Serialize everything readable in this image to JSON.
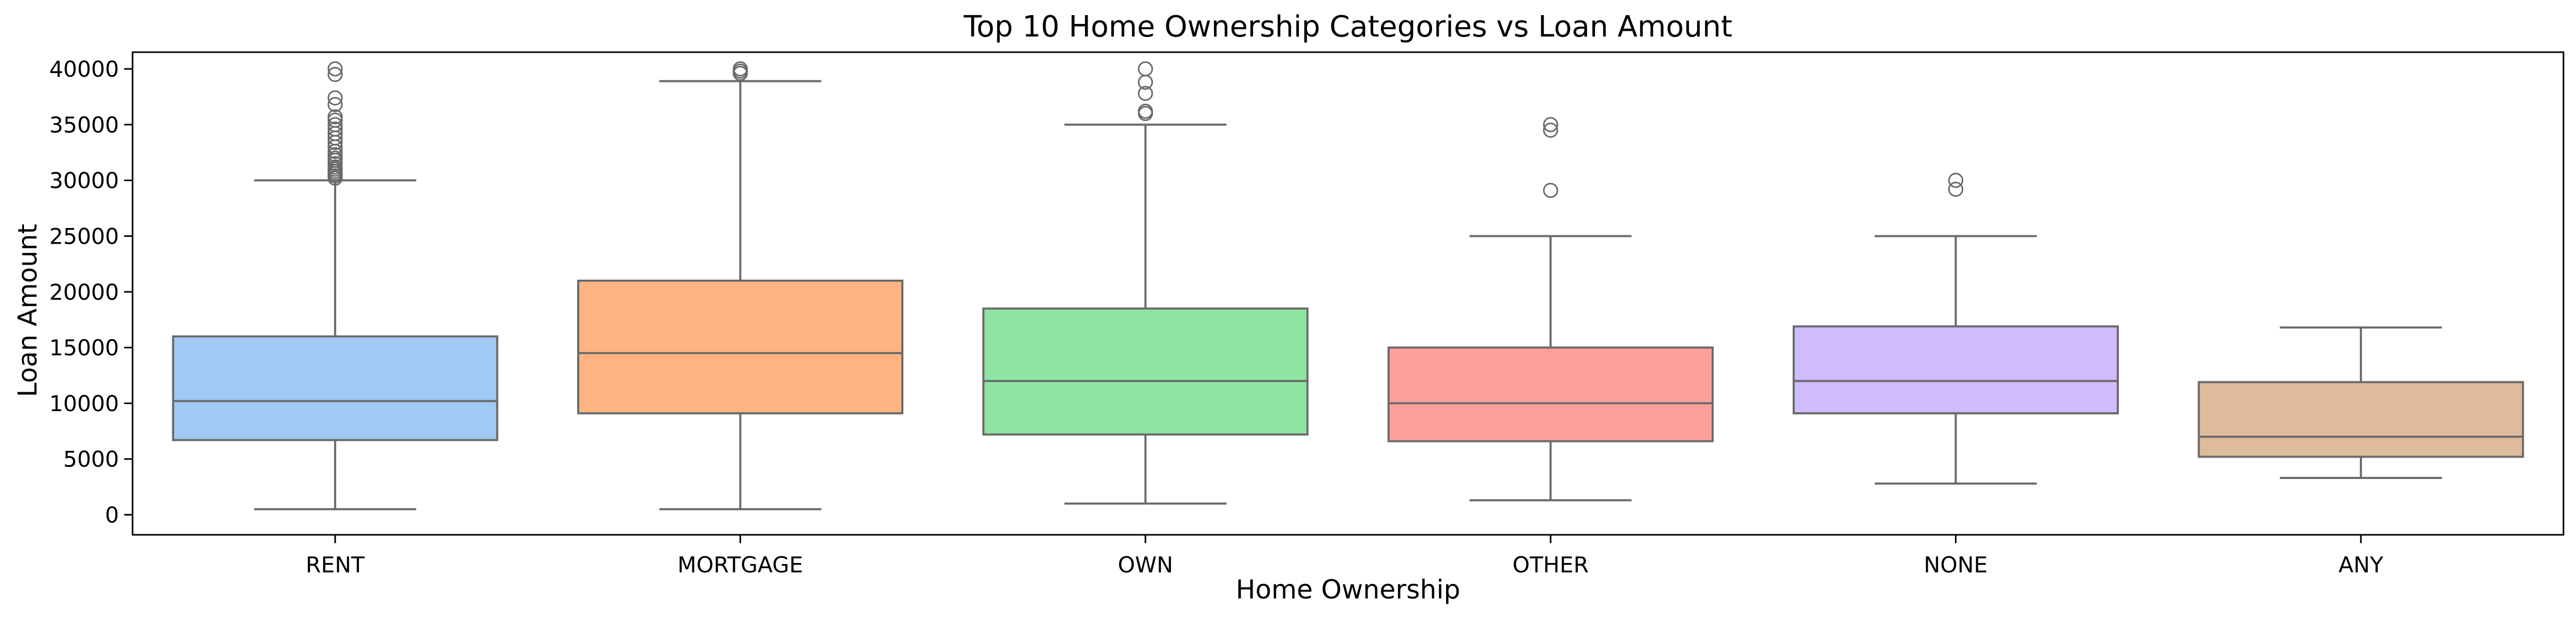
{
  "chart_data": {
    "type": "box",
    "title": "Top 10 Home Ownership Categories vs Loan Amount",
    "xlabel": "Home Ownership",
    "ylabel": "Loan Amount",
    "ylim": [
      -1800,
      41500
    ],
    "yticks": [
      0,
      5000,
      10000,
      15000,
      20000,
      25000,
      30000,
      35000,
      40000
    ],
    "grid": false,
    "categories": [
      "RENT",
      "MORTGAGE",
      "OWN",
      "OTHER",
      "NONE",
      "ANY"
    ],
    "colors": [
      "#a1c9f4",
      "#ffb482",
      "#8de5a1",
      "#ff9f9b",
      "#d0bbff",
      "#debb9b"
    ],
    "edge_color": "#6a6a6a",
    "boxes": [
      {
        "category": "RENT",
        "whisker_low": 500,
        "q1": 6700,
        "median": 10200,
        "q3": 16000,
        "whisker_high": 30000,
        "outliers": [
          30200,
          30400,
          30600,
          30800,
          31000,
          31200,
          31500,
          31800,
          32000,
          32300,
          32600,
          33000,
          33400,
          33800,
          34200,
          34600,
          35000,
          35400,
          35700,
          36800,
          37400,
          39500,
          40000
        ]
      },
      {
        "category": "MORTGAGE",
        "whisker_low": 500,
        "q1": 9100,
        "median": 14500,
        "q3": 21000,
        "whisker_high": 38900,
        "outliers": [
          39600,
          39800,
          40000
        ]
      },
      {
        "category": "OWN",
        "whisker_low": 1000,
        "q1": 7200,
        "median": 12000,
        "q3": 18500,
        "whisker_high": 35000,
        "outliers": [
          36000,
          36200,
          37800,
          38800,
          40000
        ]
      },
      {
        "category": "OTHER",
        "whisker_low": 1300,
        "q1": 6600,
        "median": 10000,
        "q3": 15000,
        "whisker_high": 25000,
        "outliers": [
          29100,
          34500,
          35000
        ]
      },
      {
        "category": "NONE",
        "whisker_low": 2800,
        "q1": 9100,
        "median": 12000,
        "q3": 16900,
        "whisker_high": 25000,
        "outliers": [
          29200,
          30000
        ]
      },
      {
        "category": "ANY",
        "whisker_low": 3300,
        "q1": 5200,
        "median": 7000,
        "q3": 11900,
        "whisker_high": 16800,
        "outliers": []
      }
    ]
  }
}
